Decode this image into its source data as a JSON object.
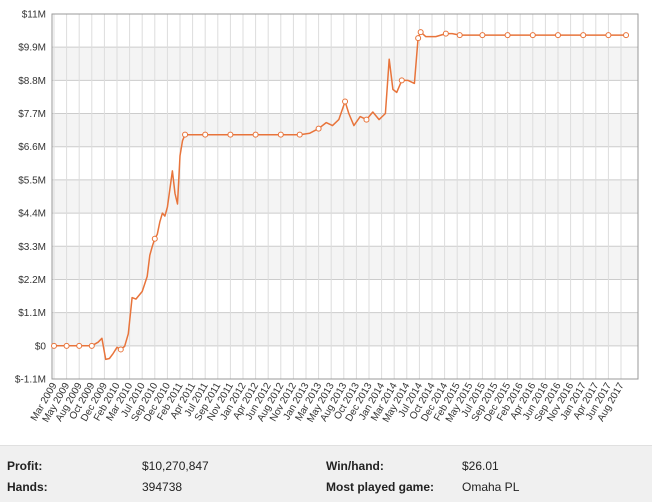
{
  "chart_data": {
    "type": "line",
    "x_tick_labels": [
      "Mar 2009",
      "May 2009",
      "Aug 2009",
      "Oct 2009",
      "Dec 2009",
      "Feb 2010",
      "Mar 2010",
      "Jul 2010",
      "Sep 2010",
      "Dec 2010",
      "Feb 2011",
      "Apr 2011",
      "Jul 2011",
      "Sep 2011",
      "Nov 2011",
      "Jan 2012",
      "Apr 2012",
      "Jun 2012",
      "Aug 2012",
      "Nov 2012",
      "Jan 2013",
      "Mar 2013",
      "May 2013",
      "Aug 2013",
      "Oct 2013",
      "Dec 2013",
      "Jan 2014",
      "Mar 2014",
      "May 2014",
      "Jul 2014",
      "Oct 2014",
      "Dec 2014",
      "Feb 2015",
      "May 2015",
      "Jul 2015",
      "Sep 2015",
      "Dec 2015",
      "Feb 2016",
      "Apr 2016",
      "Jun 2016",
      "Sep 2016",
      "Nov 2016",
      "Jan 2017",
      "Apr 2017",
      "Jun 2017",
      "Aug 2017"
    ],
    "y_tick_labels": [
      "$11M",
      "$9.9M",
      "$8.8M",
      "$7.7M",
      "$6.6M",
      "$5.5M",
      "$4.4M",
      "$3.3M",
      "$2.2M",
      "$1.1M",
      "$0",
      "$-1.1M"
    ],
    "y_ticks": [
      11,
      9.9,
      8.8,
      7.7,
      6.6,
      5.5,
      4.4,
      3.3,
      2.2,
      1.1,
      0,
      -1.1
    ],
    "ylim": [
      -1.1,
      11
    ],
    "y_unit": "$M",
    "x_unit": "tick index (0 = Mar 2009, 45 = Aug 2017)",
    "grid": true,
    "banded_background": true,
    "line_color": "#e8743b",
    "marker_fill": "#ffffff",
    "series": [
      {
        "points": [
          [
            0,
            0
          ],
          [
            1,
            0
          ],
          [
            2,
            0
          ],
          [
            3,
            0
          ],
          [
            3.5,
            0.12
          ],
          [
            3.8,
            0.25
          ],
          [
            4.1,
            -0.45
          ],
          [
            4.4,
            -0.42
          ],
          [
            4.7,
            -0.25
          ],
          [
            5.0,
            -0.05
          ],
          [
            5.3,
            -0.12
          ],
          [
            5.6,
            -0.02
          ],
          [
            5.9,
            0.4
          ],
          [
            6.2,
            1.6
          ],
          [
            6.5,
            1.55
          ],
          [
            6.8,
            1.7
          ],
          [
            7.0,
            1.8
          ],
          [
            7.2,
            2.05
          ],
          [
            7.4,
            2.3
          ],
          [
            7.6,
            3.0
          ],
          [
            7.8,
            3.3
          ],
          [
            8.0,
            3.55
          ],
          [
            8.2,
            3.7
          ],
          [
            8.4,
            4.1
          ],
          [
            8.6,
            4.4
          ],
          [
            8.8,
            4.3
          ],
          [
            9.0,
            4.6
          ],
          [
            9.2,
            5.2
          ],
          [
            9.4,
            5.8
          ],
          [
            9.6,
            5.05
          ],
          [
            9.8,
            4.7
          ],
          [
            10.0,
            6.3
          ],
          [
            10.2,
            6.8
          ],
          [
            10.4,
            7.0
          ],
          [
            12,
            7.0
          ],
          [
            14,
            7.0
          ],
          [
            16,
            7.0
          ],
          [
            18,
            7.0
          ],
          [
            19.5,
            7.0
          ],
          [
            20.3,
            7.05
          ],
          [
            21,
            7.2
          ],
          [
            21.6,
            7.4
          ],
          [
            22.1,
            7.3
          ],
          [
            22.6,
            7.5
          ],
          [
            23.1,
            8.1
          ],
          [
            23.4,
            7.7
          ],
          [
            23.8,
            7.3
          ],
          [
            24.3,
            7.6
          ],
          [
            24.8,
            7.5
          ],
          [
            25.3,
            7.75
          ],
          [
            25.8,
            7.5
          ],
          [
            26.3,
            7.7
          ],
          [
            26.6,
            9.5
          ],
          [
            26.9,
            8.5
          ],
          [
            27.2,
            8.4
          ],
          [
            27.6,
            8.8
          ],
          [
            28.1,
            8.8
          ],
          [
            28.6,
            8.7
          ],
          [
            28.9,
            10.2
          ],
          [
            29.1,
            10.4
          ],
          [
            29.5,
            10.25
          ],
          [
            30.3,
            10.25
          ],
          [
            31.1,
            10.35
          ],
          [
            31.6,
            10.35
          ],
          [
            32.2,
            10.3
          ],
          [
            34,
            10.3
          ],
          [
            36,
            10.3
          ],
          [
            38,
            10.3
          ],
          [
            40,
            10.3
          ],
          [
            42,
            10.3
          ],
          [
            44,
            10.3
          ],
          [
            45.4,
            10.3
          ]
        ],
        "markers": [
          [
            0,
            0
          ],
          [
            1,
            0
          ],
          [
            2,
            0
          ],
          [
            3,
            0
          ],
          [
            5.3,
            -0.12
          ],
          [
            8.0,
            3.55
          ],
          [
            10.4,
            7.0
          ],
          [
            12,
            7.0
          ],
          [
            14,
            7.0
          ],
          [
            16,
            7.0
          ],
          [
            18,
            7.0
          ],
          [
            19.5,
            7.0
          ],
          [
            21,
            7.2
          ],
          [
            23.1,
            8.1
          ],
          [
            24.8,
            7.5
          ],
          [
            27.6,
            8.8
          ],
          [
            28.9,
            10.2
          ],
          [
            29.1,
            10.4
          ],
          [
            31.1,
            10.35
          ],
          [
            32.2,
            10.3
          ],
          [
            34,
            10.3
          ],
          [
            36,
            10.3
          ],
          [
            38,
            10.3
          ],
          [
            40,
            10.3
          ],
          [
            42,
            10.3
          ],
          [
            44,
            10.3
          ],
          [
            45.4,
            10.3
          ]
        ]
      }
    ]
  },
  "stats": {
    "profit_label": "Profit:",
    "profit_value": "$10,270,847",
    "winhand_label": "Win/hand:",
    "winhand_value": "$26.01",
    "hands_label": "Hands:",
    "hands_value": "394738",
    "game_label": "Most played game:",
    "game_value": "Omaha PL"
  }
}
